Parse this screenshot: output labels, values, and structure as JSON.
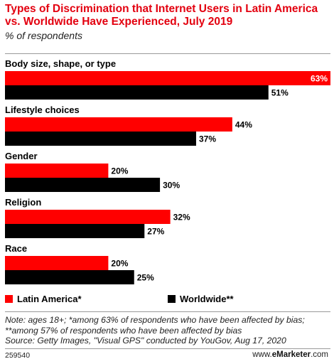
{
  "title": "Types of Discrimination that Internet Users in Latin America vs. Worldwide Have Experienced, July 2019",
  "subtitle": "% of respondents",
  "colors": {
    "latin_america": "#ff0000",
    "worldwide": "#000000",
    "title": "#e3000f"
  },
  "chart_data": {
    "type": "bar",
    "orientation": "horizontal",
    "categories": [
      "Body size, shape, or type",
      "Lifestyle choices",
      "Gender",
      "Religion",
      "Race"
    ],
    "series": [
      {
        "name": "Latin America*",
        "color": "#ff0000",
        "values": [
          63,
          44,
          20,
          32,
          20
        ],
        "labels": [
          "63%",
          "44%",
          "20%",
          "32%",
          "20%"
        ]
      },
      {
        "name": "Worldwide**",
        "color": "#000000",
        "values": [
          51,
          37,
          30,
          27,
          25
        ],
        "labels": [
          "51%",
          "37%",
          "30%",
          "27%",
          "25%"
        ]
      }
    ],
    "xlim": [
      0,
      63
    ],
    "grid": false,
    "legend_position": "bottom"
  },
  "legend": {
    "latin_america": "Latin America*",
    "worldwide": "Worldwide**"
  },
  "notes": "Note: ages 18+; *among 63% of respondents who have been affected by bias; **among 57% of respondents who have been affected by bias",
  "source": "Source: Getty Images, \"Visual GPS\" conducted by YouGov, Aug 17, 2020",
  "footer": {
    "chart_id": "259540",
    "brand_prefix": "www.",
    "brand_name": "eMarketer",
    "brand_suffix": ".com"
  }
}
